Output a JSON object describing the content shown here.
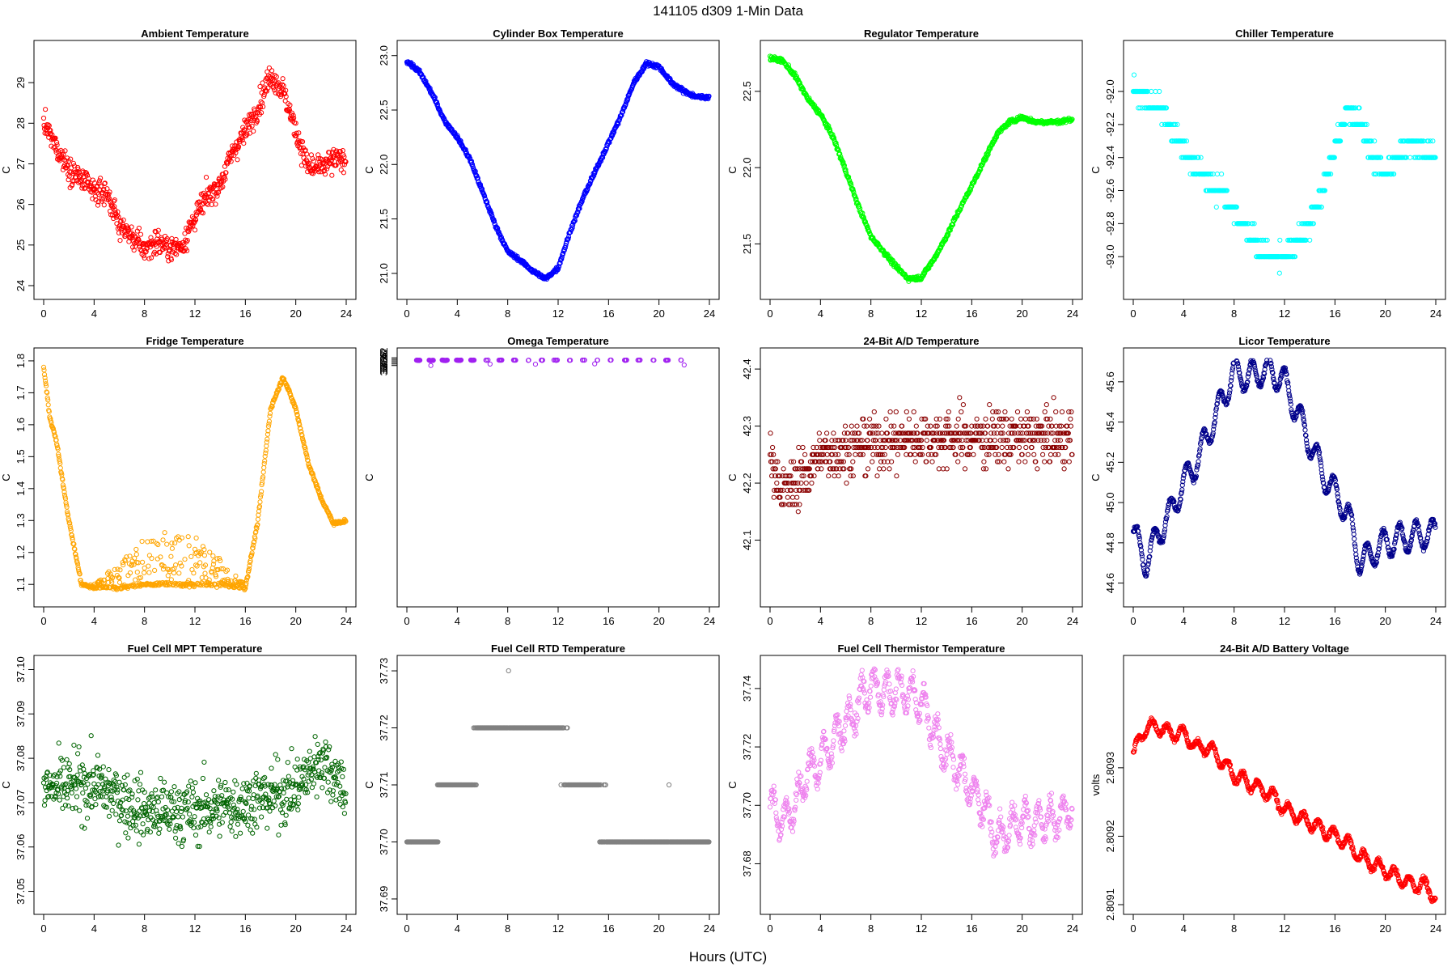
{
  "figure": {
    "title": "141105   d309   1-Min Data",
    "xlabel": "Hours (UTC)",
    "x_ticks": [
      0,
      4,
      8,
      12,
      16,
      20,
      24
    ]
  },
  "chart_data": [
    {
      "type": "scatter",
      "title": "Ambient Temperature",
      "ylabel": "C",
      "color": "#ff0000",
      "xlim": [
        0,
        24
      ],
      "ylim": [
        23.9,
        29.8
      ],
      "y_ticks": [
        24,
        25,
        26,
        27,
        28,
        29
      ],
      "noise": 0.25,
      "curve": [
        [
          0,
          28.0
        ],
        [
          1,
          27.4
        ],
        [
          2,
          26.9
        ],
        [
          3,
          26.6
        ],
        [
          4,
          26.3
        ],
        [
          5,
          26.3
        ],
        [
          6,
          25.5
        ],
        [
          7,
          25.2
        ],
        [
          8,
          24.9
        ],
        [
          9,
          25.1
        ],
        [
          10,
          24.9
        ],
        [
          11,
          25.0
        ],
        [
          12,
          25.7
        ],
        [
          13,
          26.2
        ],
        [
          14,
          26.5
        ],
        [
          15,
          27.3
        ],
        [
          16,
          27.8
        ],
        [
          17,
          28.4
        ],
        [
          18,
          29.2
        ],
        [
          19,
          28.8
        ],
        [
          20,
          27.8
        ],
        [
          21,
          26.9
        ],
        [
          22,
          26.9
        ],
        [
          23,
          27.1
        ],
        [
          24,
          27.1
        ]
      ]
    },
    {
      "type": "scatter",
      "title": "Cylinder Box Temperature",
      "ylabel": "C",
      "color": "#0000ff",
      "xlim": [
        0,
        24
      ],
      "ylim": [
        20.85,
        23.05
      ],
      "y_ticks": [
        21.0,
        21.5,
        22.0,
        22.5,
        23.0
      ],
      "noise": 0.015,
      "curve": [
        [
          0,
          22.95
        ],
        [
          1,
          22.85
        ],
        [
          2,
          22.65
        ],
        [
          3,
          22.4
        ],
        [
          4,
          22.25
        ],
        [
          5,
          22.05
        ],
        [
          6,
          21.75
        ],
        [
          7,
          21.45
        ],
        [
          8,
          21.2
        ],
        [
          9,
          21.12
        ],
        [
          10,
          21.02
        ],
        [
          11,
          20.95
        ],
        [
          12,
          21.05
        ],
        [
          13,
          21.4
        ],
        [
          14,
          21.7
        ],
        [
          15,
          21.95
        ],
        [
          16,
          22.2
        ],
        [
          17,
          22.45
        ],
        [
          18,
          22.75
        ],
        [
          19,
          22.93
        ],
        [
          20,
          22.9
        ],
        [
          21,
          22.75
        ],
        [
          22,
          22.67
        ],
        [
          23,
          22.62
        ],
        [
          24,
          22.62
        ]
      ]
    },
    {
      "type": "scatter",
      "title": "Regulator Temperature",
      "ylabel": "C",
      "color": "#00ff00",
      "xlim": [
        0,
        24
      ],
      "ylim": [
        21.2,
        22.77
      ],
      "y_ticks": [
        21.5,
        22.0,
        22.5
      ],
      "noise": 0.012,
      "curve": [
        [
          0,
          22.72
        ],
        [
          1,
          22.7
        ],
        [
          2,
          22.6
        ],
        [
          3,
          22.45
        ],
        [
          4,
          22.35
        ],
        [
          5,
          22.2
        ],
        [
          6,
          21.98
        ],
        [
          7,
          21.75
        ],
        [
          8,
          21.55
        ],
        [
          9,
          21.45
        ],
        [
          10,
          21.35
        ],
        [
          11,
          21.27
        ],
        [
          12,
          21.28
        ],
        [
          13,
          21.4
        ],
        [
          14,
          21.55
        ],
        [
          15,
          21.72
        ],
        [
          16,
          21.88
        ],
        [
          17,
          22.05
        ],
        [
          18,
          22.22
        ],
        [
          19,
          22.3
        ],
        [
          20,
          22.33
        ],
        [
          21,
          22.3
        ],
        [
          22,
          22.3
        ],
        [
          23,
          22.3
        ],
        [
          24,
          22.32
        ]
      ]
    },
    {
      "type": "scatter",
      "title": "Chiller Temperature",
      "ylabel": "C",
      "color": "#00ffff",
      "xlim": [
        0,
        24
      ],
      "ylim": [
        -93.2,
        -91.75
      ],
      "y_ticks": [
        -93.0,
        -92.8,
        -92.6,
        -92.4,
        -92.2,
        -92.0
      ],
      "quantize": 0.1,
      "noise": 0.05,
      "curve": [
        [
          0,
          -92.0
        ],
        [
          1,
          -92.05
        ],
        [
          2,
          -92.1
        ],
        [
          3,
          -92.2
        ],
        [
          4,
          -92.35
        ],
        [
          5,
          -92.45
        ],
        [
          6,
          -92.55
        ],
        [
          7,
          -92.6
        ],
        [
          8,
          -92.75
        ],
        [
          9,
          -92.85
        ],
        [
          10,
          -92.95
        ],
        [
          11,
          -93.0
        ],
        [
          12,
          -93.0
        ],
        [
          13,
          -92.9
        ],
        [
          14,
          -92.8
        ],
        [
          15,
          -92.6
        ],
        [
          16,
          -92.35
        ],
        [
          17,
          -92.1
        ],
        [
          18,
          -92.2
        ],
        [
          19,
          -92.4
        ],
        [
          20,
          -92.5
        ],
        [
          21,
          -92.4
        ],
        [
          22,
          -92.3
        ],
        [
          23,
          -92.35
        ],
        [
          24,
          -92.4
        ]
      ]
    },
    {
      "type": "scatter",
      "title": "Fridge Temperature",
      "ylabel": "C",
      "color": "#ffa500",
      "xlim": [
        0,
        24
      ],
      "ylim": [
        1.06,
        1.81
      ],
      "y_ticks": [
        1.1,
        1.2,
        1.3,
        1.4,
        1.5,
        1.6,
        1.7,
        1.8
      ],
      "noise": 0.005,
      "band": [
        [
          4,
          1.1
        ],
        [
          6,
          1.17
        ],
        [
          8,
          1.25
        ],
        [
          10,
          1.27
        ],
        [
          12,
          1.25
        ],
        [
          14,
          1.18
        ],
        [
          16,
          1.1
        ]
      ],
      "curve": [
        [
          0,
          1.78
        ],
        [
          0.5,
          1.62
        ],
        [
          1,
          1.55
        ],
        [
          2,
          1.3
        ],
        [
          3,
          1.1
        ],
        [
          4,
          1.09
        ],
        [
          6,
          1.09
        ],
        [
          8,
          1.1
        ],
        [
          10,
          1.1
        ],
        [
          12,
          1.1
        ],
        [
          14,
          1.1
        ],
        [
          16,
          1.09
        ],
        [
          17,
          1.3
        ],
        [
          18,
          1.65
        ],
        [
          19,
          1.75
        ],
        [
          20,
          1.65
        ],
        [
          21,
          1.48
        ],
        [
          22,
          1.37
        ],
        [
          23,
          1.29
        ],
        [
          24,
          1.3
        ]
      ]
    },
    {
      "type": "scatter",
      "title": "Omega Temperature",
      "ylabel": "C",
      "color": "#a020f0",
      "xlim": [
        0,
        24
      ],
      "ylim": [
        7.18,
        38.22
      ],
      "y_ticks": [
        37.2,
        37.4,
        37.6,
        37.8,
        38.0,
        38.2
      ],
      "noise": 0.03,
      "oscillation": [
        0.1,
        1.1
      ],
      "curve": [
        [
          0,
          38.15
        ],
        [
          1,
          37.95
        ],
        [
          3,
          37.95
        ],
        [
          6,
          38.0
        ],
        [
          9,
          38.0
        ],
        [
          12,
          38.0
        ],
        [
          15,
          38.0
        ],
        [
          18,
          38.0
        ],
        [
          21,
          38.0
        ],
        [
          24,
          38.05
        ]
      ],
      "outliers": [
        [
          1.9,
          37.2
        ],
        [
          6.6,
          37.39
        ],
        [
          10.2,
          37.37
        ],
        [
          14.9,
          37.42
        ],
        [
          22.0,
          37.27
        ]
      ]
    },
    {
      "type": "scatter",
      "title": "24-Bit A/D Temperature",
      "ylabel": "C",
      "color": "#8b0000",
      "xlim": [
        0,
        24
      ],
      "ylim": [
        42.0,
        42.42
      ],
      "y_ticks": [
        42.1,
        42.2,
        42.3,
        42.4
      ],
      "quantize": 0.0125,
      "noise": 0.04,
      "curve": [
        [
          0,
          42.25
        ],
        [
          1,
          42.18
        ],
        [
          2,
          42.2
        ],
        [
          3,
          42.22
        ],
        [
          4,
          42.25
        ],
        [
          8,
          42.27
        ],
        [
          12,
          42.28
        ],
        [
          16,
          42.28
        ],
        [
          20,
          42.28
        ],
        [
          24,
          42.28
        ]
      ]
    },
    {
      "type": "scatter",
      "title": "Licor Temperature",
      "ylabel": "C",
      "color": "#00008b",
      "xlim": [
        0,
        24
      ],
      "ylim": [
        44.53,
        45.72
      ],
      "y_ticks": [
        44.6,
        44.8,
        45.0,
        45.2,
        45.4,
        45.6
      ],
      "noise": 0.01,
      "oscillation": [
        0.07,
        1.3
      ],
      "curve": [
        [
          0,
          44.85
        ],
        [
          1,
          44.7
        ],
        [
          2,
          44.85
        ],
        [
          3,
          44.95
        ],
        [
          4,
          45.1
        ],
        [
          5,
          45.2
        ],
        [
          6,
          45.35
        ],
        [
          7,
          45.5
        ],
        [
          8,
          45.65
        ],
        [
          9,
          45.62
        ],
        [
          10,
          45.65
        ],
        [
          11,
          45.65
        ],
        [
          12,
          45.6
        ],
        [
          13,
          45.45
        ],
        [
          14,
          45.3
        ],
        [
          15,
          45.15
        ],
        [
          16,
          45.05
        ],
        [
          17,
          44.95
        ],
        [
          18,
          44.7
        ],
        [
          19,
          44.75
        ],
        [
          20,
          44.8
        ],
        [
          21,
          44.82
        ],
        [
          22,
          44.83
        ],
        [
          23,
          44.84
        ],
        [
          24,
          44.85
        ]
      ]
    },
    {
      "type": "scatter",
      "title": "Fuel Cell MPT Temperature",
      "ylabel": "C",
      "color": "#006400",
      "xlim": [
        0,
        24
      ],
      "ylim": [
        37.047,
        37.101
      ],
      "y_ticks": [
        37.05,
        37.06,
        37.07,
        37.08,
        37.09,
        37.1
      ],
      "noise": 0.006,
      "curve": [
        [
          0,
          37.073
        ],
        [
          4,
          37.074
        ],
        [
          8,
          37.068
        ],
        [
          12,
          37.068
        ],
        [
          16,
          37.07
        ],
        [
          20,
          37.073
        ],
        [
          22,
          37.08
        ],
        [
          24,
          37.073
        ]
      ]
    },
    {
      "type": "scatter",
      "title": "Fuel Cell RTD Temperature",
      "ylabel": "C",
      "color": "#808080",
      "xlim": [
        0,
        24
      ],
      "ylim": [
        37.689,
        37.731
      ],
      "y_ticks": [
        37.69,
        37.7,
        37.71,
        37.72,
        37.73
      ],
      "quantize": 0.01,
      "noise": 0.003,
      "curve": [
        [
          0,
          37.7
        ],
        [
          2,
          37.7
        ],
        [
          3,
          37.71
        ],
        [
          5,
          37.71
        ],
        [
          6,
          37.72
        ],
        [
          9,
          37.72
        ],
        [
          12,
          37.72
        ],
        [
          13,
          37.71
        ],
        [
          15,
          37.71
        ],
        [
          16,
          37.7
        ],
        [
          24,
          37.7
        ]
      ]
    },
    {
      "type": "scatter",
      "title": "Fuel Cell Thermistor Temperature",
      "ylabel": "C",
      "color": "#ee82ee",
      "xlim": [
        0,
        24
      ],
      "ylim": [
        37.666,
        37.748
      ],
      "y_ticks": [
        37.68,
        37.7,
        37.72,
        37.74
      ],
      "noise": 0.003,
      "oscillation": [
        0.006,
        1.0
      ],
      "curve": [
        [
          0,
          37.7
        ],
        [
          1,
          37.695
        ],
        [
          2,
          37.7
        ],
        [
          3,
          37.712
        ],
        [
          4,
          37.715
        ],
        [
          5,
          37.722
        ],
        [
          6,
          37.728
        ],
        [
          7,
          37.735
        ],
        [
          8,
          37.742
        ],
        [
          9,
          37.738
        ],
        [
          10,
          37.74
        ],
        [
          11,
          37.738
        ],
        [
          12,
          37.735
        ],
        [
          13,
          37.725
        ],
        [
          14,
          37.718
        ],
        [
          15,
          37.712
        ],
        [
          16,
          37.705
        ],
        [
          17,
          37.7
        ],
        [
          18,
          37.688
        ],
        [
          19,
          37.692
        ],
        [
          20,
          37.695
        ],
        [
          21,
          37.694
        ],
        [
          22,
          37.695
        ],
        [
          23,
          37.696
        ],
        [
          24,
          37.7
        ]
      ]
    },
    {
      "type": "scatter",
      "title": "24-Bit A/D Battery Voltage",
      "ylabel": "volts",
      "color": "#ff0000",
      "xlim": [
        0,
        24
      ],
      "ylim": [
        2.8091,
        2.80945
      ],
      "y_ticks": [
        2.8091,
        2.8092,
        2.8093
      ],
      "noise": 3e-06,
      "oscillation": [
        1e-05,
        1.2
      ],
      "curve": [
        [
          0,
          2.80932
        ],
        [
          1,
          2.80936
        ],
        [
          2,
          2.80936
        ],
        [
          3,
          2.80935
        ],
        [
          4,
          2.80935
        ],
        [
          5,
          2.80933
        ],
        [
          6,
          2.80933
        ],
        [
          7,
          2.80931
        ],
        [
          8,
          2.80929
        ],
        [
          9,
          2.80928
        ],
        [
          10,
          2.80927
        ],
        [
          11,
          2.80926
        ],
        [
          12,
          2.80924
        ],
        [
          13,
          2.80923
        ],
        [
          14,
          2.80922
        ],
        [
          15,
          2.80921
        ],
        [
          16,
          2.8092
        ],
        [
          17,
          2.80919
        ],
        [
          18,
          2.80917
        ],
        [
          19,
          2.80916
        ],
        [
          20,
          2.80915
        ],
        [
          21,
          2.80914
        ],
        [
          22,
          2.80913
        ],
        [
          23,
          2.80913
        ],
        [
          24,
          2.80911
        ]
      ]
    }
  ]
}
